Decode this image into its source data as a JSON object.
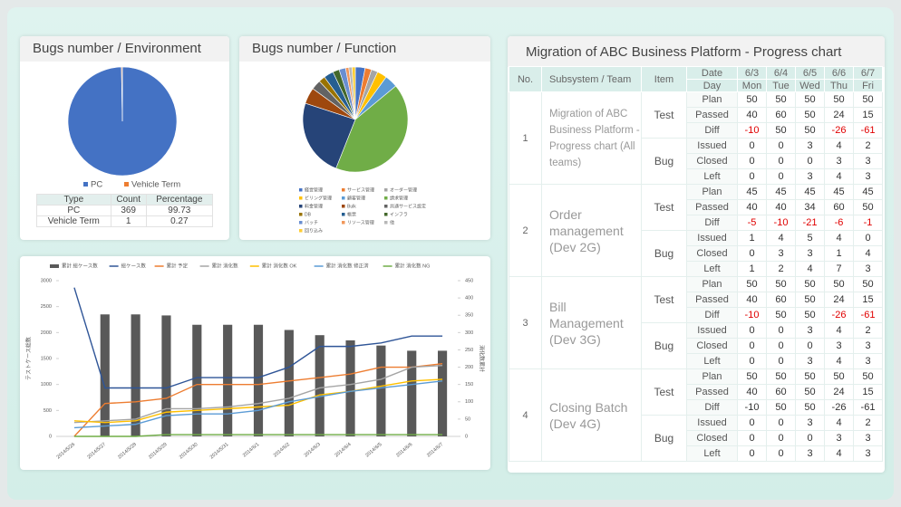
{
  "chart_data": [
    {
      "type": "pie",
      "title": "Bugs number / Environment",
      "categories": [
        "PC",
        "Vehicle Term"
      ],
      "values": [
        369,
        1
      ],
      "colors": [
        "#4472c4",
        "#ed7d31"
      ],
      "table": {
        "header": [
          "Type",
          "Count",
          "Percentage"
        ],
        "rows": [
          [
            "PC",
            369,
            99.73
          ],
          [
            "Vehicle Term",
            1,
            0.27
          ]
        ]
      }
    },
    {
      "type": "pie",
      "title": "Bugs number / Function",
      "categories": [
        "経営管理",
        "サービス管理",
        "オーダー管理",
        "ビリング管理",
        "顧客管理",
        "請求管理",
        "料金管理",
        "Bulk",
        "共通サービス設定",
        "DB",
        "帳票",
        "インフラ",
        "バッチ",
        "リソース管理",
        "他",
        "回り込み"
      ],
      "values": [
        3,
        2,
        2,
        3,
        4,
        42,
        24,
        5,
        3,
        2,
        3,
        2,
        2,
        1,
        1,
        1
      ],
      "colors": [
        "#4472c4",
        "#ed7d31",
        "#a5a5a5",
        "#ffc000",
        "#5b9bd5",
        "#70ad47",
        "#264478",
        "#9e480e",
        "#636363",
        "#997300",
        "#255e91",
        "#43682b",
        "#698ed0",
        "#f1975a",
        "#b7b7b7",
        "#ffcd33"
      ]
    },
    {
      "type": "combo",
      "y_label": "テストケース総数",
      "y2_label": "消化数累計",
      "categories": [
        "2014/5/26",
        "2014/5/27",
        "2014/5/28",
        "2014/5/29",
        "2014/5/30",
        "2014/5/31",
        "2014/6/1",
        "2014/6/2",
        "2014/6/3",
        "2014/6/4",
        "2014/6/5",
        "2014/6/6",
        "2014/6/7"
      ],
      "ylim": [
        0,
        3000
      ],
      "yticks": [
        0,
        500,
        1000,
        1500,
        2000,
        2500,
        3000
      ],
      "y2lim": [
        0,
        450
      ],
      "y2ticks": [
        0,
        50,
        100,
        150,
        200,
        250,
        300,
        350,
        400,
        450
      ],
      "series": [
        {
          "name": "累計 総ケース数",
          "type": "bar",
          "color": "#595959",
          "values": [
            null,
            2350,
            2350,
            2330,
            2150,
            2150,
            2150,
            2050,
            1950,
            1850,
            1750,
            1650,
            1650
          ]
        },
        {
          "name": "総ケース数",
          "type": "line",
          "axis": "y2",
          "color": "#2f5597",
          "values": [
            430,
            140,
            140,
            140,
            170,
            170,
            170,
            200,
            260,
            260,
            270,
            290,
            290
          ]
        },
        {
          "name": "累計 予定",
          "type": "line",
          "axis": "y2",
          "color": "#ed7d31",
          "values": [
            0,
            95,
            100,
            110,
            150,
            150,
            150,
            160,
            170,
            180,
            200,
            200,
            210
          ]
        },
        {
          "name": "累計 消化数",
          "type": "line",
          "axis": "y2",
          "color": "#a5a5a5",
          "values": [
            40,
            45,
            50,
            80,
            80,
            85,
            95,
            110,
            140,
            150,
            165,
            200,
            205
          ]
        },
        {
          "name": "累計 消化数 OK",
          "type": "line",
          "axis": "y2",
          "color": "#ffc000",
          "values": [
            45,
            40,
            45,
            70,
            75,
            80,
            85,
            90,
            120,
            130,
            145,
            160,
            165
          ]
        },
        {
          "name": "累計 消化数 修正済",
          "type": "line",
          "axis": "y2",
          "color": "#5b9bd5",
          "values": [
            25,
            30,
            35,
            60,
            65,
            65,
            75,
            100,
            115,
            130,
            140,
            150,
            160
          ]
        },
        {
          "name": "累計 消化数 NG",
          "type": "line",
          "axis": "y2",
          "color": "#70ad47",
          "values": [
            0,
            0,
            0,
            5,
            5,
            5,
            5,
            5,
            5,
            5,
            5,
            5,
            5
          ]
        }
      ]
    }
  ],
  "progress": {
    "title": "Migration of ABC Business Platform - Progress chart",
    "headers": {
      "no": "No.",
      "team": "Subsystem / Team",
      "item": "Item",
      "date": "Date",
      "day": "Day",
      "dates": [
        "6/3",
        "6/4",
        "6/5",
        "6/6",
        "6/7"
      ],
      "days": [
        "Mon",
        "Tue",
        "Wed",
        "Thu",
        "Fri"
      ]
    },
    "groups": [
      {
        "no": "1",
        "team": "Migration of ABC Business Platform -Progress chart (All teams)",
        "negatives_red": true,
        "items": [
          {
            "name": "Test",
            "rows": [
              {
                "label": "Plan",
                "values": [
                  50,
                  50,
                  50,
                  50,
                  50
                ]
              },
              {
                "label": "Passed",
                "values": [
                  40,
                  60,
                  50,
                  24,
                  15
                ]
              },
              {
                "label": "Diff",
                "values": [
                  -10,
                  50,
                  50,
                  -26,
                  -61
                ]
              }
            ]
          },
          {
            "name": "Bug",
            "rows": [
              {
                "label": "Issued",
                "values": [
                  0,
                  0,
                  3,
                  4,
                  2
                ]
              },
              {
                "label": "Closed",
                "values": [
                  0,
                  0,
                  0,
                  3,
                  3
                ]
              },
              {
                "label": "Left",
                "values": [
                  0,
                  0,
                  3,
                  4,
                  3
                ]
              }
            ]
          }
        ]
      },
      {
        "no": "2",
        "team": "Order management (Dev 2G)",
        "negatives_red": true,
        "items": [
          {
            "name": "Test",
            "rows": [
              {
                "label": "Plan",
                "values": [
                  45,
                  45,
                  45,
                  45,
                  45
                ]
              },
              {
                "label": "Passed",
                "values": [
                  40,
                  40,
                  34,
                  60,
                  50
                ]
              },
              {
                "label": "Diff",
                "values": [
                  -5,
                  -10,
                  -21,
                  -6,
                  -1
                ]
              }
            ]
          },
          {
            "name": "Bug",
            "rows": [
              {
                "label": "Issued",
                "values": [
                  1,
                  4,
                  5,
                  4,
                  0
                ]
              },
              {
                "label": "Closed",
                "values": [
                  0,
                  3,
                  3,
                  1,
                  4
                ]
              },
              {
                "label": "Left",
                "values": [
                  1,
                  2,
                  4,
                  7,
                  3
                ]
              }
            ]
          }
        ]
      },
      {
        "no": "3",
        "team": "Bill Management (Dev 3G)",
        "negatives_red": true,
        "items": [
          {
            "name": "Test",
            "rows": [
              {
                "label": "Plan",
                "values": [
                  50,
                  50,
                  50,
                  50,
                  50
                ]
              },
              {
                "label": "Passed",
                "values": [
                  40,
                  60,
                  50,
                  24,
                  15
                ]
              },
              {
                "label": "Diff",
                "values": [
                  -10,
                  50,
                  50,
                  -26,
                  -61
                ]
              }
            ]
          },
          {
            "name": "Bug",
            "rows": [
              {
                "label": "Issued",
                "values": [
                  0,
                  0,
                  3,
                  4,
                  2
                ]
              },
              {
                "label": "Closed",
                "values": [
                  0,
                  0,
                  0,
                  3,
                  3
                ]
              },
              {
                "label": "Left",
                "values": [
                  0,
                  0,
                  3,
                  4,
                  3
                ]
              }
            ]
          }
        ]
      },
      {
        "no": "4",
        "team": "Closing Batch (Dev 4G)",
        "negatives_red": false,
        "items": [
          {
            "name": "Test",
            "rows": [
              {
                "label": "Plan",
                "values": [
                  50,
                  50,
                  50,
                  50,
                  50
                ]
              },
              {
                "label": "Passed",
                "values": [
                  40,
                  60,
                  50,
                  24,
                  15
                ]
              },
              {
                "label": "Diff",
                "values": [
                  -10,
                  50,
                  50,
                  -26,
                  -61
                ]
              }
            ]
          },
          {
            "name": "Bug",
            "rows": [
              {
                "label": "Issued",
                "values": [
                  0,
                  0,
                  3,
                  4,
                  2
                ]
              },
              {
                "label": "Closed",
                "values": [
                  0,
                  0,
                  0,
                  3,
                  3
                ]
              },
              {
                "label": "Left",
                "values": [
                  0,
                  0,
                  3,
                  4,
                  3
                ]
              }
            ]
          }
        ]
      }
    ]
  }
}
